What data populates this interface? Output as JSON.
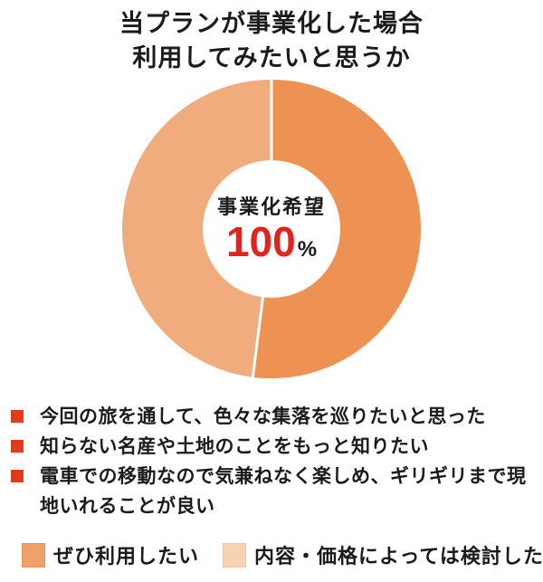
{
  "title": {
    "line1": "当プランが事業化した場合",
    "line2": "利用してみたいと思うか"
  },
  "chart_data": {
    "type": "pie",
    "subtype": "donut",
    "title": "当プランが事業化した場合 利用してみたいと思うか",
    "center_label": {
      "text": "事業化希望",
      "value": "100",
      "unit": "%",
      "value_color": "#e2241c"
    },
    "series": [
      {
        "name": "ぜひ利用したい",
        "value": 52,
        "color": "#ee9254"
      },
      {
        "name": "内容・価格によっては検討したい",
        "value": 48,
        "color": "#f1ac7e"
      }
    ],
    "start_angle_deg": 0,
    "direction": "clockwise",
    "divider_color": "#ffffff",
    "hole_color": "#ffffff"
  },
  "findings": {
    "bullet_color": "#e33a18",
    "items": [
      "今回の旅を通して、色々な集落を巡りたいと思った",
      "知らない名産や土地のことをもっと知りたい",
      "電車での移動なので気兼ねなく楽しめ、ギリギリまで現地いれることが良い"
    ]
  },
  "legend": {
    "items": [
      {
        "label": "ぜひ利用したい",
        "color": "#efa169",
        "border": "#e2935c"
      },
      {
        "label": "内容・価格によっては検討したい",
        "color": "#f8d2b3",
        "border": "#efc4a4"
      }
    ]
  }
}
